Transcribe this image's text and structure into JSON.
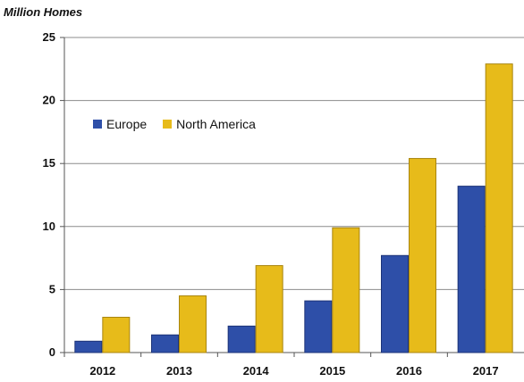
{
  "chart_data": {
    "type": "bar",
    "ylabel": "Million Homes",
    "categories": [
      "2012",
      "2013",
      "2014",
      "2015",
      "2016",
      "2017"
    ],
    "series": [
      {
        "name": "Europe",
        "color": "#2e4fa8",
        "values": [
          0.9,
          1.4,
          2.1,
          4.1,
          7.7,
          13.2
        ]
      },
      {
        "name": "North America",
        "color": "#e7bb1a",
        "values": [
          2.8,
          4.5,
          6.9,
          9.9,
          15.4,
          22.9
        ]
      }
    ],
    "ylim": [
      0,
      25
    ],
    "yticks": [
      0,
      5,
      10,
      15,
      20,
      25
    ],
    "grid": true,
    "legend_position": "upper-left"
  }
}
